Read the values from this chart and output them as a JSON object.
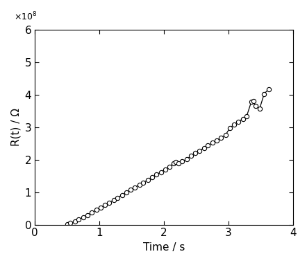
{
  "title": "",
  "xlabel": "Time / s",
  "ylabel": "R(t) / Ω",
  "xlim": [
    0,
    4
  ],
  "ylim": [
    0,
    600000000.0
  ],
  "background_color": "#ffffff",
  "line_color": "#000000",
  "marker_color": "#000000",
  "x": [
    0.5,
    0.55,
    0.62,
    0.68,
    0.75,
    0.82,
    0.88,
    0.95,
    1.02,
    1.08,
    1.15,
    1.22,
    1.28,
    1.35,
    1.42,
    1.48,
    1.55,
    1.62,
    1.68,
    1.75,
    1.82,
    1.88,
    1.95,
    2.02,
    2.08,
    2.15,
    2.18,
    2.22,
    2.28,
    2.35,
    2.42,
    2.48,
    2.55,
    2.62,
    2.68,
    2.75,
    2.82,
    2.88,
    2.95,
    3.02,
    3.08,
    3.15,
    3.22,
    3.28,
    3.35,
    3.38,
    3.42,
    3.48,
    3.55,
    3.62
  ],
  "y": [
    1000000.0,
    5000000.0,
    10000000.0,
    16000000.0,
    23000000.0,
    30000000.0,
    37000000.0,
    45000000.0,
    53000000.0,
    60000000.0,
    68000000.0,
    76000000.0,
    83000000.0,
    91000000.0,
    99000000.0,
    107000000.0,
    115000000.0,
    123000000.0,
    130000000.0,
    138000000.0,
    146000000.0,
    154000000.0,
    162000000.0,
    170000000.0,
    178000000.0,
    190000000.0,
    193000000.0,
    188000000.0,
    195000000.0,
    202000000.0,
    212000000.0,
    220000000.0,
    228000000.0,
    236000000.0,
    244000000.0,
    252000000.0,
    260000000.0,
    268000000.0,
    276000000.0,
    298000000.0,
    308000000.0,
    317000000.0,
    326000000.0,
    335000000.0,
    378000000.0,
    380000000.0,
    365000000.0,
    358000000.0,
    403000000.0,
    418000000.0
  ],
  "yticks": [
    0,
    100000000.0,
    200000000.0,
    300000000.0,
    400000000.0,
    500000000.0,
    600000000.0
  ],
  "ytick_labels": [
    "0",
    "1",
    "2",
    "3",
    "4",
    "5",
    "6"
  ],
  "xticks": [
    0,
    1,
    2,
    3,
    4
  ],
  "marker_size": 4.5,
  "line_width": 0.9,
  "font_size": 11
}
